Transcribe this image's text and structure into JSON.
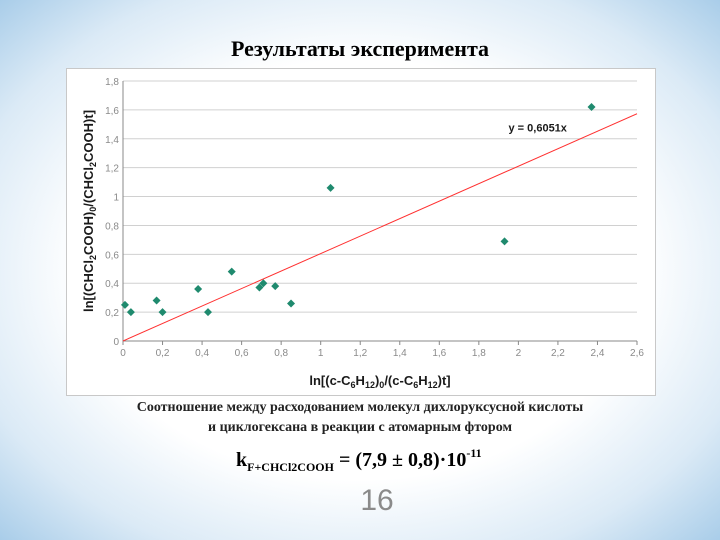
{
  "slide": {
    "title": "Результаты эксперимента",
    "caption_line1": "Соотношение между расходованием молекул дихлоруксусной кислоты",
    "caption_line2": "и циклогексана в реакции с атомарным фтором",
    "rate_k": "k",
    "rate_subscript": "F+CHCl2COOH",
    "rate_value": " = (7,9 ± 0,8)·10",
    "rate_exponent": "-11",
    "page_number": "16"
  },
  "colors": {
    "marker": "#1f8a6e",
    "trendline": "#ff3030",
    "grid": "#d0d0d0",
    "axis": "#888888",
    "tick_text": "#8a8a8a",
    "label_text": "#1a1a1a"
  },
  "chart_data": {
    "type": "scatter",
    "title": "",
    "xlabel": "ln[(c-C6H12)0/(c-C6H12)t]",
    "ylabel": "ln[(CHCl2COOH)0/(CHCl2COOH)t]",
    "xlim": [
      0,
      2.6
    ],
    "ylim": [
      0,
      1.8
    ],
    "x_ticks": [
      "0",
      "0,2",
      "0,4",
      "0,6",
      "0,8",
      "1",
      "1,2",
      "1,4",
      "1,6",
      "1,8",
      "2",
      "2,2",
      "2,4",
      "2,6"
    ],
    "y_ticks": [
      "0",
      "0,2",
      "0,4",
      "0,6",
      "0,8",
      "1",
      "1,2",
      "1,4",
      "1,6",
      "1,8"
    ],
    "grid": "horizontal",
    "marker": "diamond",
    "series": [
      {
        "points": [
          [
            0.01,
            0.25
          ],
          [
            0.04,
            0.2
          ],
          [
            0.17,
            0.28
          ],
          [
            0.2,
            0.2
          ],
          [
            0.38,
            0.36
          ],
          [
            0.43,
            0.2
          ],
          [
            0.55,
            0.48
          ],
          [
            0.69,
            0.37
          ],
          [
            0.71,
            0.4
          ],
          [
            0.77,
            0.38
          ],
          [
            0.85,
            0.26
          ],
          [
            1.05,
            1.06
          ],
          [
            1.93,
            0.69
          ],
          [
            2.37,
            1.62
          ]
        ]
      }
    ],
    "trendline": {
      "equation": "y = 0,6051x",
      "slope": 0.6051,
      "intercept": 0,
      "x_range": [
        0,
        2.6
      ]
    }
  }
}
